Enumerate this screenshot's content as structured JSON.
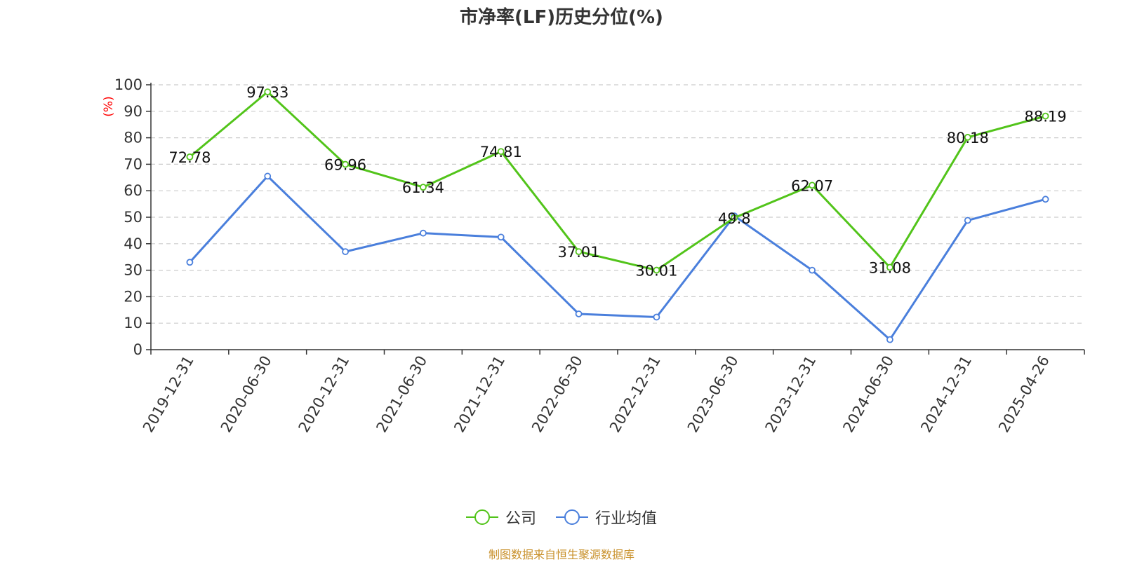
{
  "chart_data": {
    "type": "line",
    "title": "市净率(LF)历史分位(%)",
    "ylabel": "(%)",
    "xlabel": "",
    "ylim": [
      0,
      100
    ],
    "yticks": [
      0,
      10,
      20,
      30,
      40,
      50,
      60,
      70,
      80,
      90,
      100
    ],
    "grid": true,
    "legend_position": "bottom",
    "categories": [
      "2019-12-31",
      "2020-06-30",
      "2020-12-31",
      "2021-06-30",
      "2021-12-31",
      "2022-06-30",
      "2022-12-31",
      "2023-06-30",
      "2023-12-31",
      "2024-06-30",
      "2024-12-31",
      "2025-04-26"
    ],
    "series": [
      {
        "name": "公司",
        "color": "#52c41a",
        "values": [
          72.78,
          97.33,
          69.96,
          61.34,
          74.81,
          37.01,
          30.01,
          49.8,
          62.07,
          31.08,
          80.18,
          88.19
        ],
        "labels": [
          "72.78",
          "97.33",
          "69.96",
          "61.34",
          "74.81",
          "37.01",
          "30.01",
          "49.8",
          "62.07",
          "31.08",
          "80.18",
          "88.19"
        ]
      },
      {
        "name": "行业均值",
        "color": "#4a7fdc",
        "values": [
          33,
          65.5,
          37,
          44,
          42.5,
          13.5,
          12.3,
          50.5,
          30,
          3.8,
          48.8,
          56.8
        ]
      }
    ]
  },
  "source_note": "制图数据来自恒生聚源数据库"
}
